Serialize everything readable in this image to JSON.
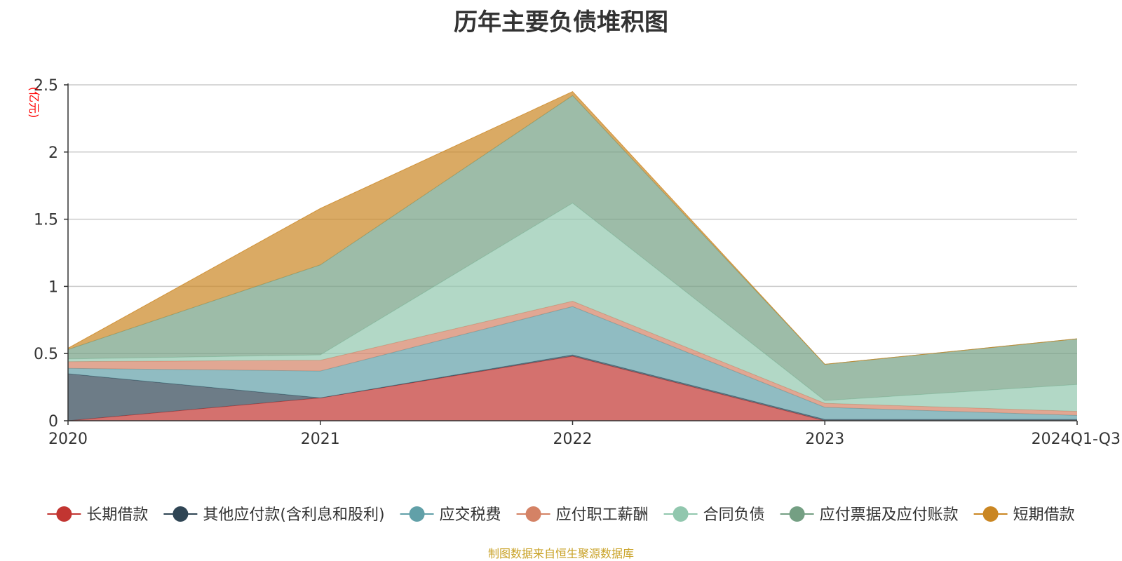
{
  "chart_data": {
    "type": "area",
    "title": "历年主要负债堆积图",
    "y_unit": "(亿元)",
    "categories": [
      "2020",
      "2021",
      "2022",
      "2023",
      "2024Q1-Q3"
    ],
    "ylim": [
      0,
      2.5
    ],
    "y_ticks": [
      "0",
      "0.5",
      "1",
      "1.5",
      "2",
      "2.5"
    ],
    "stacked": true,
    "grid": true,
    "legend_position": "bottom",
    "series": [
      {
        "name": "长期借款",
        "color": "#c23531",
        "values": [
          0,
          0.17,
          0.48,
          0,
          0
        ]
      },
      {
        "name": "其他应付款(含利息和股利)",
        "color": "#2f4554",
        "values": [
          0.35,
          0,
          0.01,
          0.01,
          0.01
        ]
      },
      {
        "name": "应交税费",
        "color": "#61a0a8",
        "values": [
          0.04,
          0.2,
          0.36,
          0.09,
          0.03
        ]
      },
      {
        "name": "应付职工薪酬",
        "color": "#d48265",
        "values": [
          0.05,
          0.08,
          0.04,
          0.03,
          0.03
        ]
      },
      {
        "name": "合同负债",
        "color": "#91c7ae",
        "values": [
          0.02,
          0.04,
          0.73,
          0.02,
          0.2
        ]
      },
      {
        "name": "应付票据及应付账款",
        "color": "#749f83",
        "values": [
          0.07,
          0.67,
          0.8,
          0.27,
          0.34
        ]
      },
      {
        "name": "短期借款",
        "color": "#ca8622",
        "values": [
          0.01,
          0.42,
          0.03,
          0,
          0
        ]
      }
    ]
  },
  "source_text": "制图数据来自恒生聚源数据库",
  "colors": {
    "title": "#333333",
    "axis": "#333333",
    "grid": "#cccccc",
    "unit": "#ff0000",
    "source": "#c9a227"
  }
}
